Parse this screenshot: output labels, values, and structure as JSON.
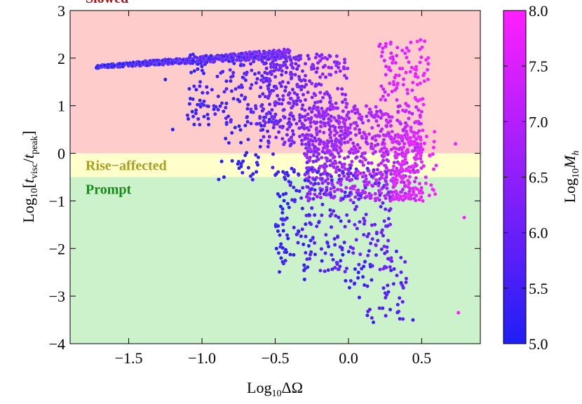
{
  "chart_data": {
    "type": "scatter",
    "xlabel_main": "Log",
    "xlabel_sub": "10",
    "xlabel_tail": "ΔΩ",
    "ylabel_main": "Log",
    "ylabel_sub": "10",
    "ylabel_open": "[",
    "ylabel_t1": "t",
    "ylabel_t1_sub": "visc",
    "ylabel_slash": "/",
    "ylabel_t2": "t",
    "ylabel_t2_sub": "peak",
    "ylabel_close": "]",
    "colorbar_label_main": "Log",
    "colorbar_label_sub": "10",
    "colorbar_label_tail": "M",
    "colorbar_label_tail_sub": "h",
    "xlim": [
      -1.9,
      0.9
    ],
    "ylim": [
      -4,
      3
    ],
    "xticks": [
      -1.5,
      -1.0,
      -0.5,
      0.0,
      0.5
    ],
    "xtick_labels": [
      "−1.5",
      "−1.0",
      "−0.5",
      "0.0",
      "0.5"
    ],
    "yticks": [
      -4,
      -3,
      -2,
      -1,
      0,
      1,
      2,
      3
    ],
    "ytick_labels": [
      "−4",
      "−3",
      "−2",
      "−1",
      "0",
      "1",
      "2",
      "3"
    ],
    "colorbar": {
      "range": [
        5.0,
        8.0
      ],
      "ticks": [
        5.0,
        5.5,
        6.0,
        6.5,
        7.0,
        7.5,
        8.0
      ],
      "tick_labels": [
        "5.0",
        "5.5",
        "6.0",
        "6.5",
        "7.0",
        "7.5",
        "8.0"
      ],
      "color_low": "#1f1ff5",
      "color_high": "#ff1fff"
    },
    "regions": [
      {
        "label": "Slowed",
        "y_range": [
          0,
          3
        ],
        "fill": "#ffcccc",
        "label_color": "#b01010"
      },
      {
        "label": "Rise−affected",
        "y_range": [
          -0.5,
          0
        ],
        "fill": "#ffffcc",
        "label_color": "#a8a020"
      },
      {
        "label": "Prompt",
        "y_range": [
          -4,
          -0.5
        ],
        "fill": "#ccf2cc",
        "label_color": "#1a8a1a"
      }
    ],
    "clusters": [
      {
        "x": [
          -1.72,
          -0.4
        ],
        "y": [
          1.7,
          2.2
        ],
        "mh": [
          5.0,
          6.4
        ],
        "n": 520,
        "trend": "plateau"
      },
      {
        "x": [
          -1.1,
          -0.3
        ],
        "y": [
          0.6,
          2.1
        ],
        "mh": [
          5.1,
          6.2
        ],
        "n": 240
      },
      {
        "x": [
          -0.6,
          0.0
        ],
        "y": [
          0.0,
          2.1
        ],
        "mh": [
          5.6,
          6.8
        ],
        "n": 300
      },
      {
        "x": [
          -0.3,
          0.5
        ],
        "y": [
          -1.0,
          1.0
        ],
        "mh": [
          6.1,
          7.6
        ],
        "n": 700
      },
      {
        "x": [
          -0.5,
          0.3
        ],
        "y": [
          -2.5,
          -0.3
        ],
        "mh": [
          5.0,
          6.3
        ],
        "n": 260
      },
      {
        "x": [
          -0.05,
          0.4
        ],
        "y": [
          -3.5,
          -2.0
        ],
        "mh": [
          5.0,
          6.0
        ],
        "n": 60
      },
      {
        "x": [
          0.2,
          0.55
        ],
        "y": [
          1.0,
          2.4
        ],
        "mh": [
          7.3,
          8.0
        ],
        "n": 90
      },
      {
        "x": [
          0.3,
          0.6
        ],
        "y": [
          -1.0,
          0.5
        ],
        "mh": [
          7.4,
          8.0
        ],
        "n": 120
      },
      {
        "x": [
          -0.9,
          -0.5
        ],
        "y": [
          -0.6,
          0.8
        ],
        "mh": [
          5.0,
          5.6
        ],
        "n": 40
      }
    ],
    "notable_points": [
      {
        "x": -1.72,
        "y": 1.8,
        "mh": 5.2
      },
      {
        "x": -1.25,
        "y": 1.55,
        "mh": 5.2
      },
      {
        "x": -1.2,
        "y": 0.5,
        "mh": 5.1
      },
      {
        "x": -0.85,
        "y": -0.5,
        "mh": 5.1
      },
      {
        "x": -0.46,
        "y": -2.2,
        "mh": 5.2
      },
      {
        "x": -0.3,
        "y": -2.65,
        "mh": 5.3
      },
      {
        "x": 0.75,
        "y": -3.35,
        "mh": 7.9
      },
      {
        "x": 0.79,
        "y": -1.35,
        "mh": 7.9
      },
      {
        "x": 0.73,
        "y": 0.2,
        "mh": 7.9
      },
      {
        "x": 0.47,
        "y": 2.35,
        "mh": 8.0
      },
      {
        "x": 0.17,
        "y": -3.55,
        "mh": 5.3
      },
      {
        "x": 0.44,
        "y": -3.5,
        "mh": 5.4
      }
    ],
    "grid": false
  }
}
